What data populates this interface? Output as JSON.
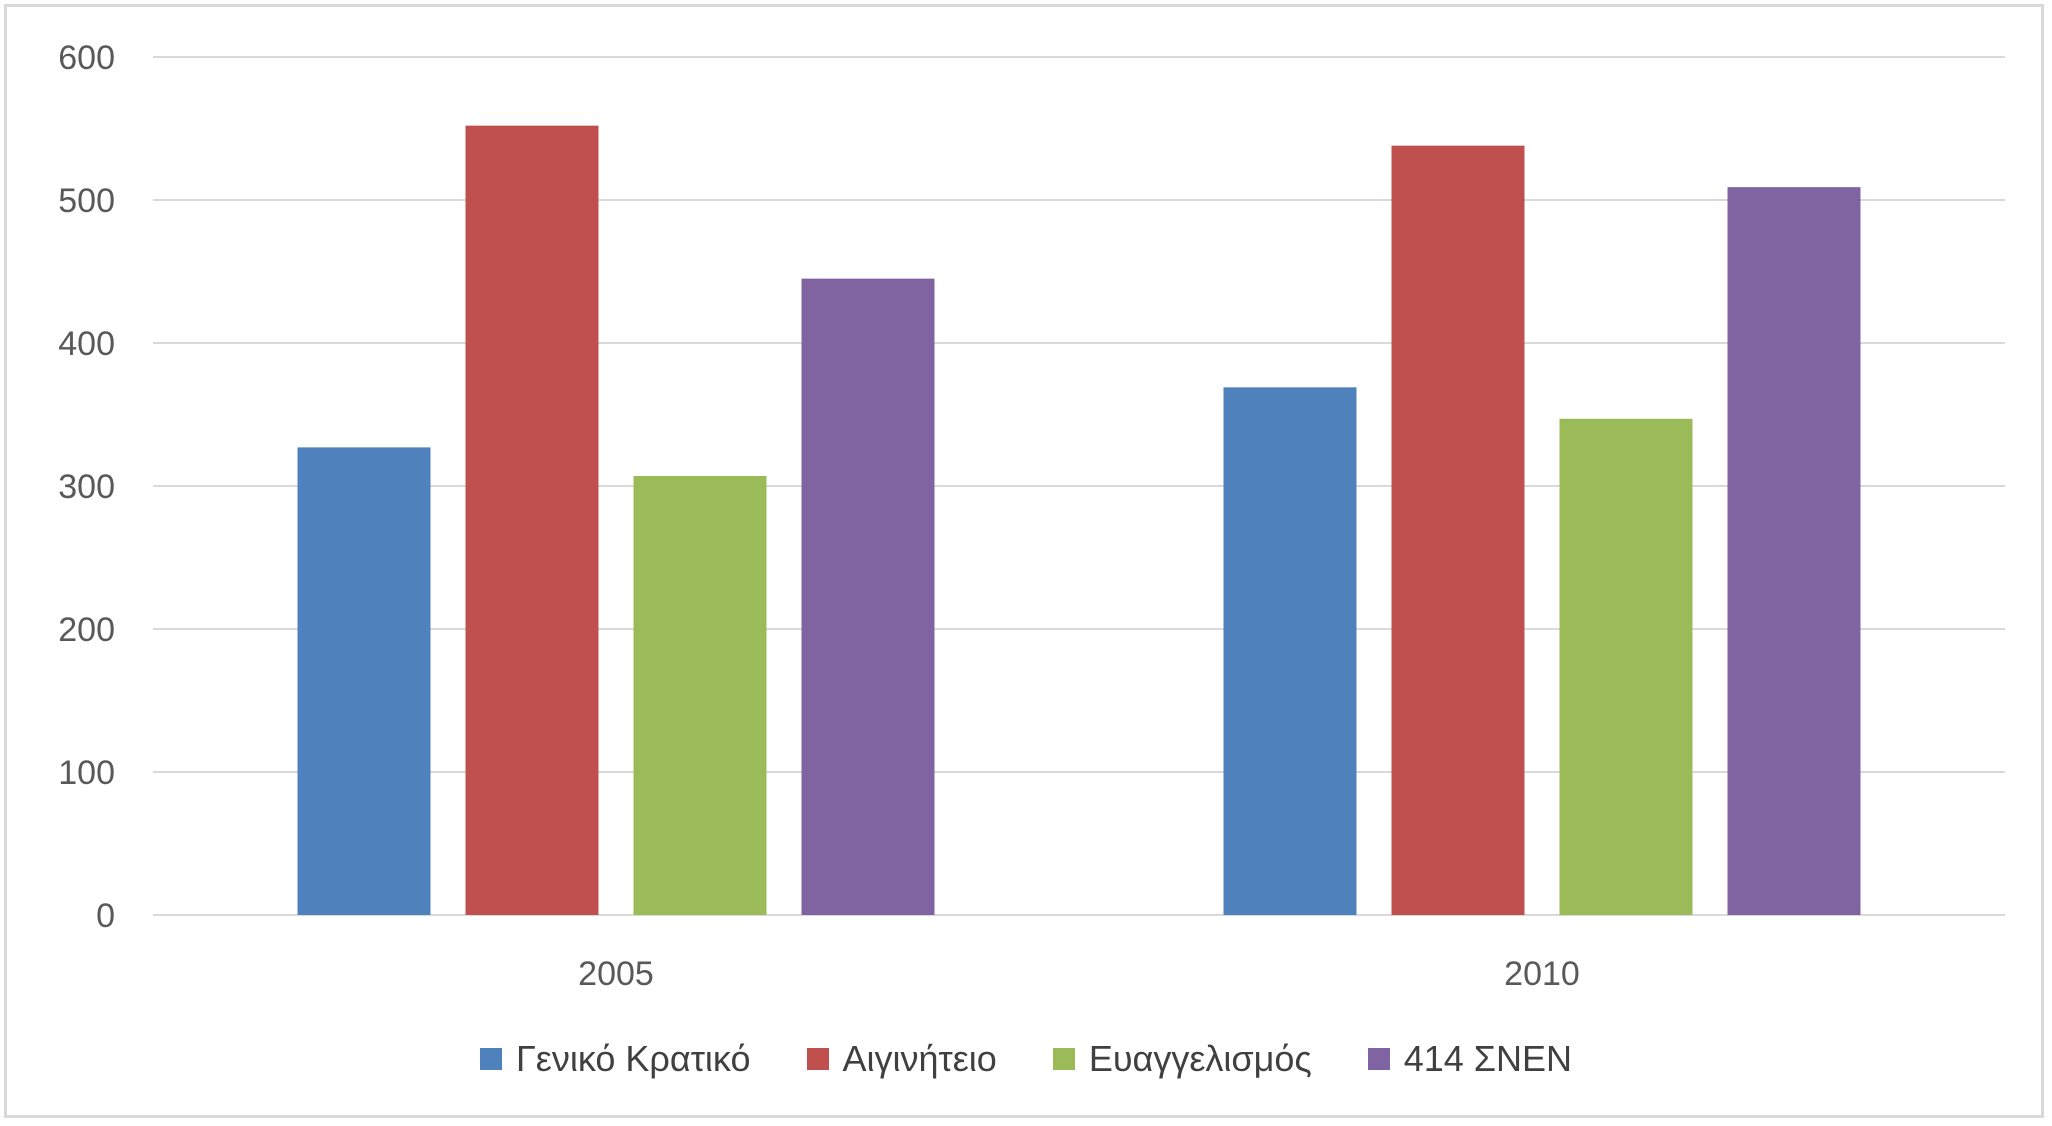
{
  "chart_data": {
    "type": "bar",
    "title": "",
    "xlabel": "",
    "ylabel": "",
    "categories": [
      "2005",
      "2010"
    ],
    "series": [
      {
        "name": "Γενικό Κρατικό",
        "color": "#4F81BD",
        "values": [
          327,
          369
        ]
      },
      {
        "name": "Αιγινήτειο",
        "color": "#C0504D",
        "values": [
          552,
          538
        ]
      },
      {
        "name": "Ευαγγελισμός",
        "color": "#9BBB59",
        "values": [
          307,
          347
        ]
      },
      {
        "name": "414 ΣΝΕΝ",
        "color": "#8064A2",
        "values": [
          445,
          509
        ]
      }
    ],
    "ylim": [
      0,
      600
    ],
    "yticks": [
      "0",
      "100",
      "200",
      "300",
      "400",
      "500",
      "600"
    ],
    "grid": true,
    "legend_position": "bottom"
  }
}
